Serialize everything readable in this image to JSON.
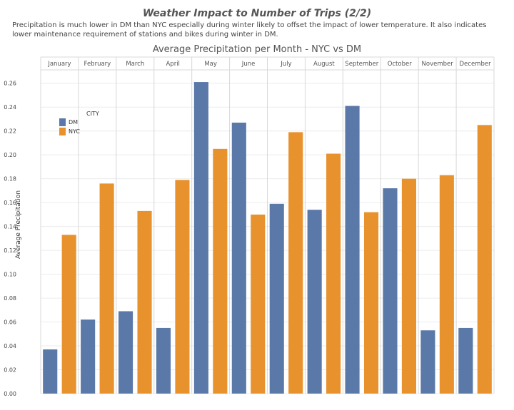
{
  "header": {
    "title": "Weather Impact to Number of Trips (2/2)",
    "subtitle": "Precipitation is much lower in DM than NYC especially during winter likely to offset the impact of lower temperature. It also indicates lower maintenance requirement of stations and bikes during winter in DM."
  },
  "colors": {
    "DM": "#5a78a8",
    "NYC": "#e8922e"
  },
  "chart_data": {
    "type": "bar",
    "title": "Average Precipitation per Month - NYC vs DM",
    "xlabel": "",
    "ylabel": "Average Precipitation",
    "ylim": [
      0,
      0.27
    ],
    "yticks": [
      0.0,
      0.02,
      0.04,
      0.06,
      0.08,
      0.1,
      0.12,
      0.14,
      0.16,
      0.18,
      0.2,
      0.22,
      0.24,
      0.26
    ],
    "grid": true,
    "legend": {
      "title": "CITY",
      "placement": "top-left"
    },
    "categories": [
      "January",
      "February",
      "March",
      "April",
      "May",
      "June",
      "July",
      "August",
      "September",
      "October",
      "November",
      "December"
    ],
    "series": [
      {
        "name": "DM",
        "values": [
          0.037,
          0.062,
          0.069,
          0.055,
          0.261,
          0.227,
          0.159,
          0.154,
          0.241,
          0.172,
          0.053,
          0.055
        ]
      },
      {
        "name": "NYC",
        "values": [
          0.133,
          0.176,
          0.153,
          0.179,
          0.205,
          0.15,
          0.219,
          0.201,
          0.152,
          0.18,
          0.183,
          0.225
        ]
      }
    ]
  }
}
